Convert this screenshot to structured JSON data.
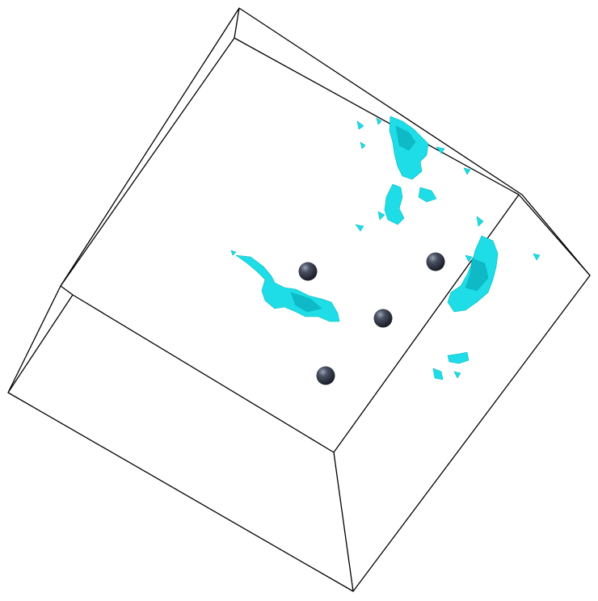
{
  "scene": {
    "background_color": "#ffffff",
    "box_edge_color": "#000000",
    "isosurface_color": "#1fdde6",
    "isosurface_shade_color": "#0fb9c6",
    "atom_color": "#2a2e3a",
    "atom_highlight_color": "#9aa3b5",
    "atom_count": 4
  }
}
